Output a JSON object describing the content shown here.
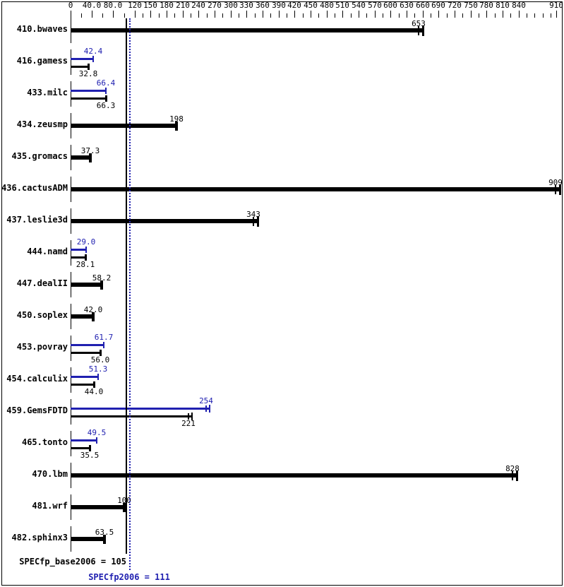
{
  "chart_data": {
    "type": "bar",
    "orientation": "horizontal",
    "legend": "black bars = base result, blue bars = peak result",
    "colors": {
      "base": "#000000",
      "peak": "#2020b0"
    },
    "x_axis": {
      "min": 0,
      "max": 922,
      "grid": false,
      "major_ticks": [
        {
          "value": 0,
          "label": "0"
        },
        {
          "value": 40,
          "label": "40.0"
        },
        {
          "value": 80,
          "label": "80.0"
        },
        {
          "value": 120,
          "label": "120"
        },
        {
          "value": 150,
          "label": "150"
        },
        {
          "value": 180,
          "label": "180"
        },
        {
          "value": 210,
          "label": "210"
        },
        {
          "value": 240,
          "label": "240"
        },
        {
          "value": 270,
          "label": "270"
        },
        {
          "value": 300,
          "label": "300"
        },
        {
          "value": 330,
          "label": "330"
        },
        {
          "value": 360,
          "label": "360"
        },
        {
          "value": 390,
          "label": "390"
        },
        {
          "value": 420,
          "label": "420"
        },
        {
          "value": 450,
          "label": "450"
        },
        {
          "value": 480,
          "label": "480"
        },
        {
          "value": 510,
          "label": "510"
        },
        {
          "value": 540,
          "label": "540"
        },
        {
          "value": 570,
          "label": "570"
        },
        {
          "value": 600,
          "label": "600"
        },
        {
          "value": 630,
          "label": "630"
        },
        {
          "value": 660,
          "label": "660"
        },
        {
          "value": 690,
          "label": "690"
        },
        {
          "value": 720,
          "label": "720"
        },
        {
          "value": 750,
          "label": "750"
        },
        {
          "value": 780,
          "label": "780"
        },
        {
          "value": 810,
          "label": "810"
        },
        {
          "value": 840,
          "label": "840"
        },
        {
          "value": 910,
          "label": "910"
        }
      ],
      "minor_ticks": [
        20,
        60,
        100,
        135,
        165,
        195,
        225,
        255,
        285,
        315,
        345,
        375,
        405,
        435,
        465,
        495,
        525,
        555,
        585,
        615,
        645,
        675,
        705,
        735,
        765,
        795,
        825,
        855,
        870,
        885,
        900
      ]
    },
    "benchmarks": [
      {
        "name": "410.bwaves",
        "result": "653",
        "range_marks": true
      },
      {
        "name": "416.gamess",
        "peak": "42.4",
        "base": "32.8"
      },
      {
        "name": "433.milc",
        "peak": "66.4",
        "base": "66.3"
      },
      {
        "name": "434.zeusmp",
        "result": "198"
      },
      {
        "name": "435.gromacs",
        "result": "37.3"
      },
      {
        "name": "436.cactusADM",
        "result": "909",
        "range_marks": true
      },
      {
        "name": "437.leslie3d",
        "result": "343",
        "range_marks": true
      },
      {
        "name": "444.namd",
        "peak": "29.0",
        "base": "28.1"
      },
      {
        "name": "447.dealII",
        "result": "58.2"
      },
      {
        "name": "450.soplex",
        "result": "42.0"
      },
      {
        "name": "453.povray",
        "peak": "61.7",
        "base": "56.0"
      },
      {
        "name": "454.calculix",
        "peak": "51.3",
        "base": "44.0"
      },
      {
        "name": "459.GemsFDTD",
        "peak": "254",
        "base": "221",
        "range_marks": true
      },
      {
        "name": "465.tonto",
        "peak": "49.5",
        "base": "35.5"
      },
      {
        "name": "470.lbm",
        "result": "828",
        "range_marks": true
      },
      {
        "name": "481.wrf",
        "result": "100"
      },
      {
        "name": "482.sphinx3",
        "result": "63.5"
      }
    ],
    "reference_lines": [
      {
        "label": "SPECfp_base2006 = 105",
        "value": 105,
        "style": "solid",
        "color": "#000000"
      },
      {
        "label": "SPECfp2006 = 111",
        "value": 111,
        "style": "dotted",
        "color": "#2020b0"
      }
    ]
  }
}
